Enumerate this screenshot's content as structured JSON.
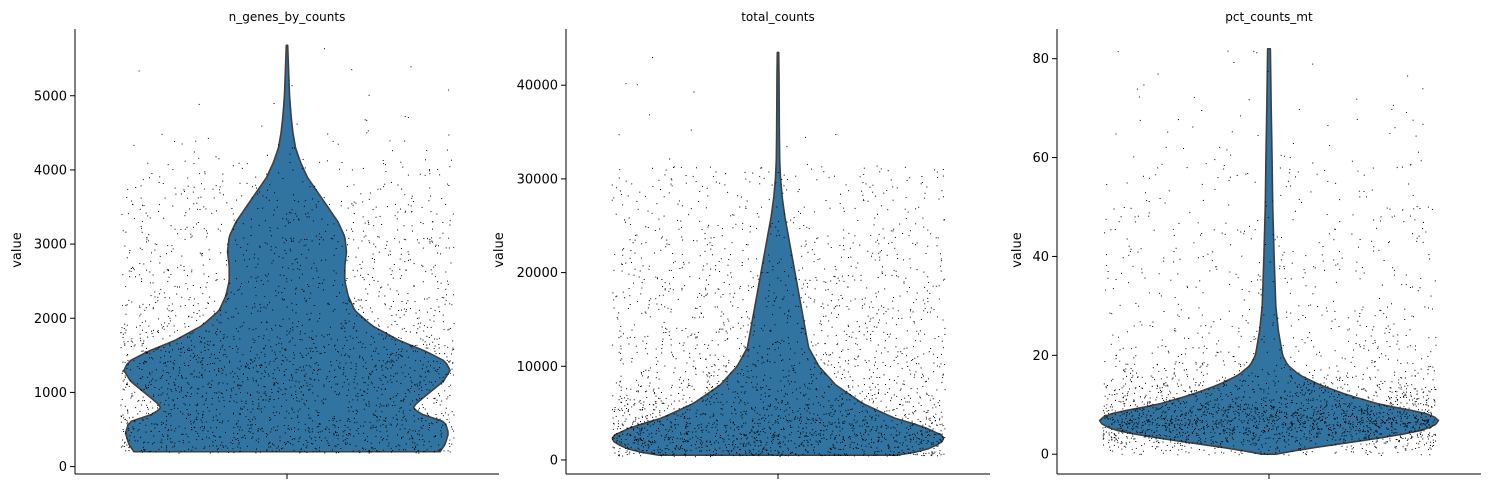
{
  "chart_data": [
    {
      "type": "violin",
      "title": "n_genes_by_counts",
      "ylabel": "value",
      "ylim": [
        -100,
        5900
      ],
      "yticks": [
        0,
        1000,
        2000,
        3000,
        4000,
        5000
      ],
      "violin": {
        "min": 200,
        "max": 5680,
        "density": [
          [
            200,
            0.9
          ],
          [
            300,
            0.93
          ],
          [
            450,
            0.95
          ],
          [
            600,
            0.93
          ],
          [
            700,
            0.8
          ],
          [
            780,
            0.74
          ],
          [
            850,
            0.76
          ],
          [
            1000,
            0.84
          ],
          [
            1150,
            0.92
          ],
          [
            1300,
            0.96
          ],
          [
            1420,
            0.93
          ],
          [
            1550,
            0.82
          ],
          [
            1700,
            0.66
          ],
          [
            1900,
            0.5
          ],
          [
            2100,
            0.4
          ],
          [
            2300,
            0.36
          ],
          [
            2500,
            0.34
          ],
          [
            2700,
            0.34
          ],
          [
            2900,
            0.35
          ],
          [
            3100,
            0.34
          ],
          [
            3300,
            0.3
          ],
          [
            3500,
            0.24
          ],
          [
            3700,
            0.18
          ],
          [
            3900,
            0.12
          ],
          [
            4100,
            0.08
          ],
          [
            4300,
            0.05
          ],
          [
            4500,
            0.035
          ],
          [
            4700,
            0.025
          ],
          [
            5000,
            0.015
          ],
          [
            5300,
            0.01
          ],
          [
            5680,
            0.004
          ]
        ]
      },
      "scatter": {
        "n_points": 2700,
        "points_in_violin": 0.8
      }
    },
    {
      "type": "violin",
      "title": "total_counts",
      "ylabel": "value",
      "ylim": [
        -1500,
        46000
      ],
      "yticks": [
        0,
        10000,
        20000,
        30000,
        40000
      ],
      "violin": {
        "min": 500,
        "max": 43500,
        "density": [
          [
            500,
            0.7
          ],
          [
            1000,
            0.86
          ],
          [
            1800,
            0.96
          ],
          [
            2500,
            0.98
          ],
          [
            3500,
            0.86
          ],
          [
            4500,
            0.68
          ],
          [
            6000,
            0.5
          ],
          [
            8000,
            0.34
          ],
          [
            10000,
            0.24
          ],
          [
            12000,
            0.18
          ],
          [
            14000,
            0.16
          ],
          [
            16000,
            0.14
          ],
          [
            18000,
            0.12
          ],
          [
            20000,
            0.1
          ],
          [
            22000,
            0.08
          ],
          [
            24000,
            0.06
          ],
          [
            26000,
            0.04
          ],
          [
            28000,
            0.025
          ],
          [
            30000,
            0.015
          ],
          [
            32000,
            0.01
          ],
          [
            35000,
            0.008
          ],
          [
            38000,
            0.007
          ],
          [
            41000,
            0.006
          ],
          [
            43500,
            0.004
          ]
        ]
      },
      "scatter": {
        "n_points": 2700,
        "points_in_violin": 0.6
      }
    },
    {
      "type": "violin",
      "title": "pct_counts_mt",
      "ylabel": "value",
      "ylim": [
        -4,
        86
      ],
      "yticks": [
        0,
        20,
        40,
        60,
        80
      ],
      "violin": {
        "min": 0,
        "max": 82,
        "density": [
          [
            0,
            0.04
          ],
          [
            1,
            0.2
          ],
          [
            2,
            0.4
          ],
          [
            3,
            0.6
          ],
          [
            4,
            0.78
          ],
          [
            5,
            0.92
          ],
          [
            6,
            0.98
          ],
          [
            7,
            1.0
          ],
          [
            8,
            0.95
          ],
          [
            9,
            0.82
          ],
          [
            10,
            0.66
          ],
          [
            12,
            0.46
          ],
          [
            14,
            0.3
          ],
          [
            16,
            0.18
          ],
          [
            18,
            0.11
          ],
          [
            20,
            0.08
          ],
          [
            25,
            0.055
          ],
          [
            30,
            0.04
          ],
          [
            40,
            0.03
          ],
          [
            50,
            0.022
          ],
          [
            60,
            0.018
          ],
          [
            70,
            0.013
          ],
          [
            82,
            0.008
          ]
        ]
      },
      "scatter": {
        "n_points": 2700,
        "points_in_violin": 0.85
      }
    }
  ],
  "colors": {
    "violin_fill": "#3274a1",
    "violin_edge": "#3f3f3f",
    "points": "#000000",
    "axis": "#000000"
  }
}
